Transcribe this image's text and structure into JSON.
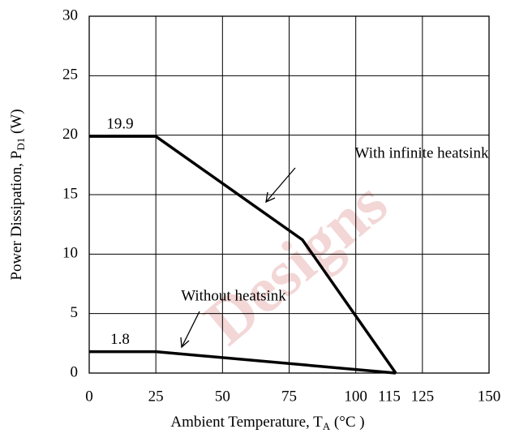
{
  "chart_data": {
    "type": "line",
    "xlabel": {
      "text": "Ambient Temperature, T",
      "sub": "A",
      "after": " (°C )"
    },
    "ylabel": {
      "text": "Power Dissipation, P",
      "sub": "D1",
      "after": " (W)"
    },
    "series": [
      {
        "name": "With infinite heatsink",
        "color": "#000000",
        "x": [
          0,
          25,
          80,
          115
        ],
        "values": [
          19.9,
          19.9,
          11.2,
          0
        ]
      },
      {
        "name": "Without heatsink",
        "color": "#000000",
        "x": [
          0,
          25,
          115
        ],
        "values": [
          1.8,
          1.8,
          0
        ]
      }
    ],
    "xlim": [
      0,
      150
    ],
    "xticks": [
      0,
      25,
      50,
      75,
      100,
      125,
      150
    ],
    "ylim": [
      0,
      30
    ],
    "yticks": [
      0,
      5,
      10,
      15,
      20,
      25,
      30
    ],
    "grid": true,
    "watermark": "Designs"
  }
}
